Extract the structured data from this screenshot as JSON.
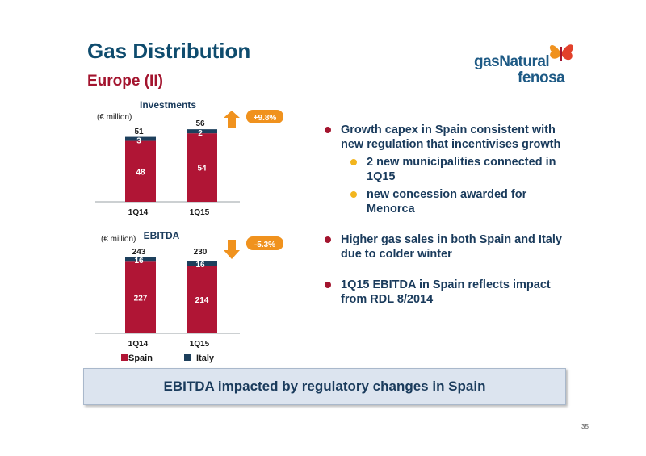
{
  "page": {
    "title": "Gas Distribution",
    "subtitle": "Europe (II)",
    "page_number": "35"
  },
  "logo": {
    "line1": "gasNatural",
    "line2": "fenosa"
  },
  "bullets": {
    "items": [
      {
        "text": "Growth capex in Spain consistent with new regulation that incentivises growth",
        "sub": [
          "2 new municipalities connected in 1Q15",
          "new concession awarded for Menorca"
        ]
      },
      {
        "text": "Higher gas sales in both Spain and Italy due to colder winter",
        "sub": []
      },
      {
        "text": "1Q15 EBITDA in Spain reflects impact from RDL 8/2014",
        "sub": []
      }
    ]
  },
  "banner": {
    "text": "EBITDA impacted by regulatory changes in Spain"
  },
  "colors": {
    "spain": "#b01535",
    "italy": "#1d3f5c",
    "arrow": "#f0921e",
    "title": "#0f4c6e",
    "subtitle": "#a3142e"
  },
  "chart_data": [
    {
      "type": "bar",
      "stacked": true,
      "title": "Investments",
      "unit_label": "(€ million)",
      "categories": [
        "1Q14",
        "1Q15"
      ],
      "totals": [
        51,
        56
      ],
      "series": [
        {
          "name": "Spain",
          "values": [
            48,
            54
          ]
        },
        {
          "name": "Italy",
          "values": [
            3,
            2
          ]
        }
      ],
      "change_label": "+9.8%",
      "change_direction": "up",
      "ylim": [
        0,
        56
      ]
    },
    {
      "type": "bar",
      "stacked": true,
      "title": "EBITDA",
      "unit_label": "(€ million)",
      "categories": [
        "1Q14",
        "1Q15"
      ],
      "totals": [
        243,
        230
      ],
      "series": [
        {
          "name": "Spain",
          "values": [
            227,
            214
          ]
        },
        {
          "name": "Italy",
          "values": [
            16,
            16
          ]
        }
      ],
      "change_label": "-5.3%",
      "change_direction": "down",
      "ylim": [
        0,
        243
      ]
    }
  ],
  "legend": {
    "items": [
      "Spain",
      "Italy"
    ]
  }
}
